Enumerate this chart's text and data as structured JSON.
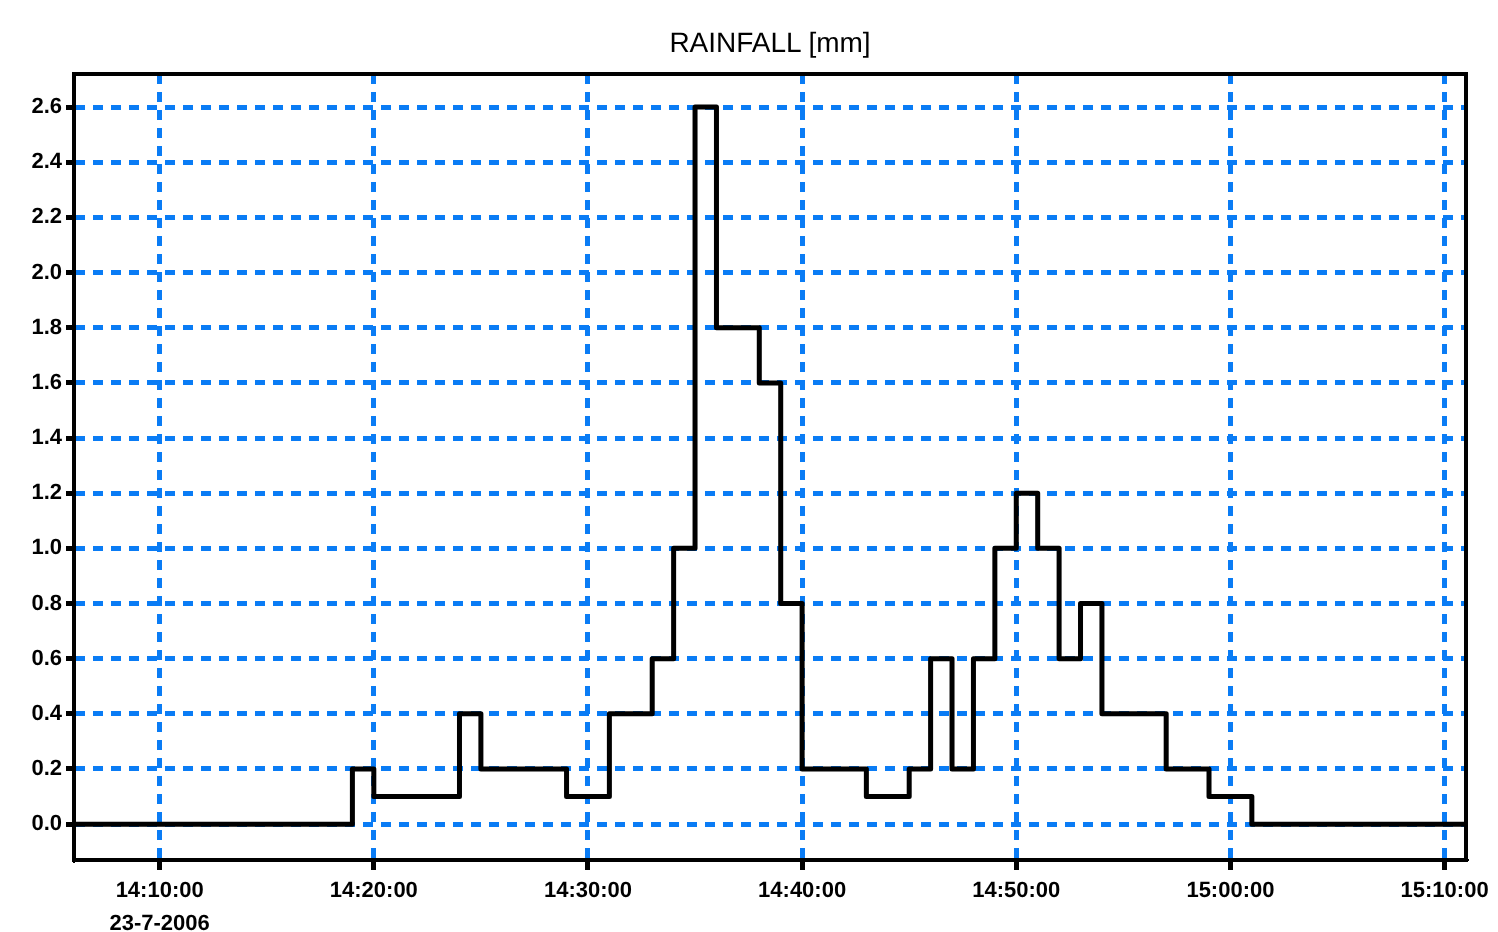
{
  "chart_data": {
    "type": "step",
    "title": "RAINFALL [mm]",
    "x": [
      "2006-07-23T14:06",
      "2006-07-23T14:19",
      "2006-07-23T14:20",
      "2006-07-23T14:24",
      "2006-07-23T14:25",
      "2006-07-23T14:29",
      "2006-07-23T14:31",
      "2006-07-23T14:33",
      "2006-07-23T14:34",
      "2006-07-23T14:35",
      "2006-07-23T14:36",
      "2006-07-23T14:38",
      "2006-07-23T14:39",
      "2006-07-23T14:40",
      "2006-07-23T14:43",
      "2006-07-23T14:45",
      "2006-07-23T14:46",
      "2006-07-23T14:47",
      "2006-07-23T14:48",
      "2006-07-23T14:49",
      "2006-07-23T14:50",
      "2006-07-23T14:51",
      "2006-07-23T14:52",
      "2006-07-23T14:53",
      "2006-07-23T14:54",
      "2006-07-23T14:57",
      "2006-07-23T14:59",
      "2006-07-23T15:01",
      "2006-07-23T15:11"
    ],
    "series": [
      {
        "color": "#000000",
        "values": [
          0,
          0.2,
          0.1,
          0.4,
          0.2,
          0.1,
          0.4,
          0.6,
          1.0,
          2.6,
          1.8,
          1.6,
          0.8,
          0.2,
          0.1,
          0.2,
          0.6,
          0.2,
          0.6,
          1.0,
          1.2,
          1.0,
          0.6,
          0.8,
          0.4,
          0.2,
          0.1,
          0,
          0
        ]
      }
    ],
    "xlim": [
      "2006-07-23T14:06",
      "2006-07-23T15:11"
    ],
    "xticks": [
      {
        "value": "2006-07-23T14:10",
        "label": "14:10:00"
      },
      {
        "value": "2006-07-23T14:20",
        "label": "14:20:00"
      },
      {
        "value": "2006-07-23T14:30",
        "label": "14:30:00"
      },
      {
        "value": "2006-07-23T14:40",
        "label": "14:40:00"
      },
      {
        "value": "2006-07-23T14:50",
        "label": "14:50:00"
      },
      {
        "value": "2006-07-23T15:00",
        "label": "15:00:00"
      },
      {
        "value": "2006-07-23T15:10",
        "label": "15:10:00"
      }
    ],
    "ylim": [
      -0.13,
      2.72
    ],
    "yticks": [
      {
        "value": 0,
        "label": "0.0"
      },
      {
        "value": 0.2,
        "label": "0.2"
      },
      {
        "value": 0.4,
        "label": "0.4"
      },
      {
        "value": 0.6,
        "label": "0.6"
      },
      {
        "value": 0.8,
        "label": "0.8"
      },
      {
        "value": 1.0,
        "label": "1.0"
      },
      {
        "value": 1.2,
        "label": "1.2"
      },
      {
        "value": 1.4,
        "label": "1.4"
      },
      {
        "value": 1.6,
        "label": "1.6"
      },
      {
        "value": 1.8,
        "label": "1.8"
      },
      {
        "value": 2.0,
        "label": "2.0"
      },
      {
        "value": 2.2,
        "label": "2.2"
      },
      {
        "value": 2.4,
        "label": "2.4"
      },
      {
        "value": 2.6,
        "label": "2.6"
      }
    ],
    "grid": true,
    "legend": false,
    "marker": "none",
    "line_style": "solid",
    "annotations": [
      "23-7-2006"
    ]
  }
}
